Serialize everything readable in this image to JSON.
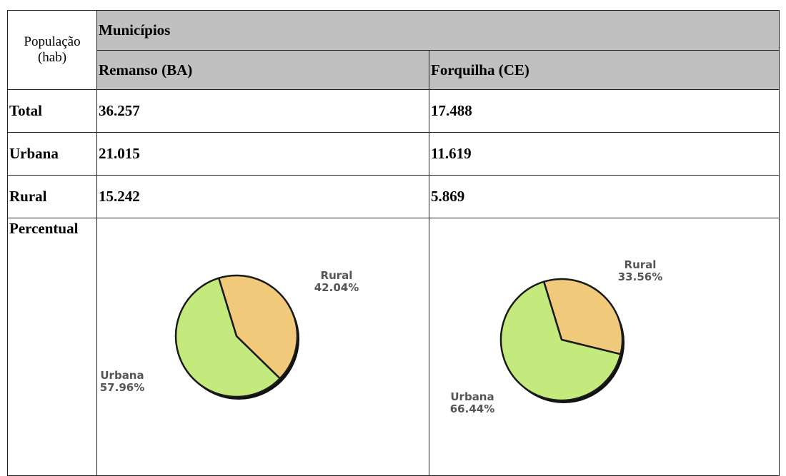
{
  "table": {
    "corner": "População (hab)",
    "group": "Municípios",
    "columns": [
      "Remanso (BA)",
      "Forquilha (CE)"
    ],
    "rows": [
      {
        "label": "Total",
        "values": [
          "36.257",
          "17.488"
        ]
      },
      {
        "label": "Urbana",
        "values": [
          "21.015",
          "11.619"
        ]
      },
      {
        "label": "Rural",
        "values": [
          "15.242",
          "5.869"
        ]
      }
    ],
    "percent_label": "Percentual"
  },
  "chart_data": [
    {
      "type": "pie",
      "categories": [
        "Urbana",
        "Rural"
      ],
      "values": [
        57.96,
        42.04
      ],
      "value_labels": [
        "57.96%",
        "42.04%"
      ],
      "colors": [
        "#c4e97c",
        "#f0c97a"
      ]
    },
    {
      "type": "pie",
      "categories": [
        "Urbana",
        "Rural"
      ],
      "values": [
        66.44,
        33.56
      ],
      "value_labels": [
        "66.44%",
        "33.56%"
      ],
      "colors": [
        "#c4e97c",
        "#f0c97a"
      ]
    }
  ]
}
